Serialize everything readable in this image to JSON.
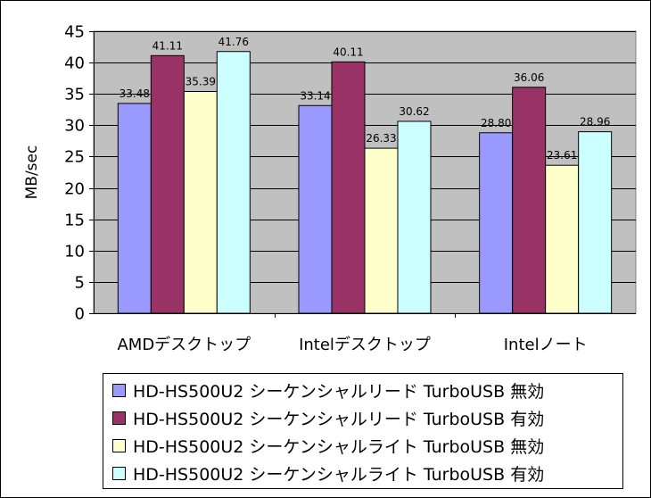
{
  "chart_data": {
    "type": "bar",
    "title": "",
    "xlabel": "",
    "ylabel": "MB/sec",
    "ylim": [
      0,
      45
    ],
    "yticks": [
      0,
      5,
      10,
      15,
      20,
      25,
      30,
      35,
      40,
      45
    ],
    "grid": true,
    "legend_position": "bottom",
    "categories": [
      "AMDデスクトップ",
      "Intelデスクトップ",
      "Intelノート"
    ],
    "series": [
      {
        "name": "HD-HS500U2 シーケンシャルリード TurboUSB 無効",
        "values": [
          33.48,
          33.14,
          28.8
        ],
        "labels": [
          "33.48",
          "33.14",
          "28.80"
        ],
        "color": "#9999ff"
      },
      {
        "name": "HD-HS500U2 シーケンシャルリード TurboUSB 有効",
        "values": [
          41.11,
          40.11,
          36.06
        ],
        "labels": [
          "41.11",
          "40.11",
          "36.06"
        ],
        "color": "#993366"
      },
      {
        "name": "HD-HS500U2 シーケンシャルライト TurboUSB 無効",
        "values": [
          35.39,
          26.33,
          23.61
        ],
        "labels": [
          "35.39",
          "26.33",
          "23.61"
        ],
        "color": "#ffffcc"
      },
      {
        "name": "HD-HS500U2 シーケンシャルライト TurboUSB 有効",
        "values": [
          41.76,
          30.62,
          28.96
        ],
        "labels": [
          "41.76",
          "30.62",
          "28.96"
        ],
        "color": "#ccffff"
      }
    ],
    "plot_background": "#c0c0c0"
  }
}
